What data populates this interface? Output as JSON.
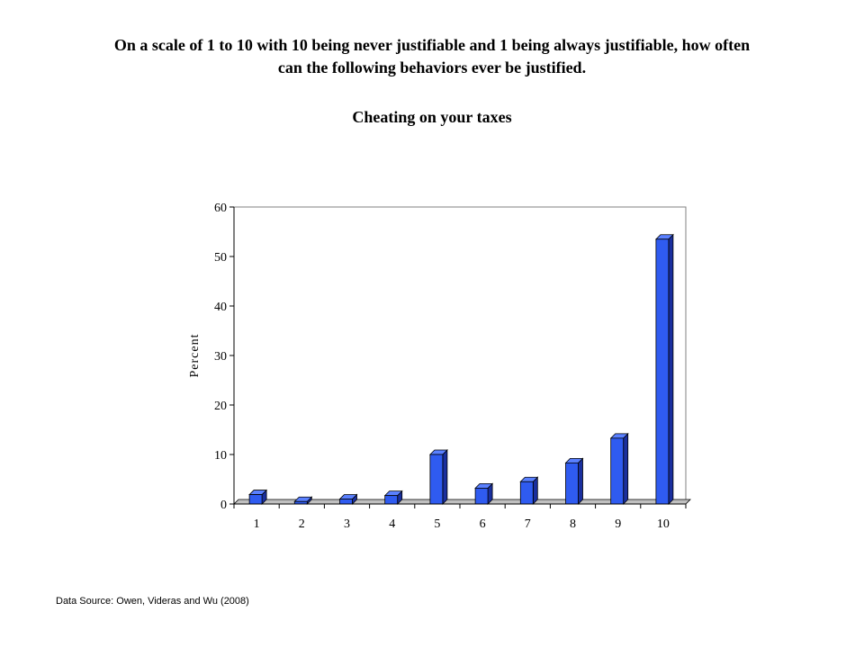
{
  "title_lines": [
    "On a scale of 1 to 10 with 10 being never justifiable and 1 being always justifiable, how often",
    "can the following behaviors ever be justified."
  ],
  "source": "Data Source: Owen, Videras and Wu (2008)",
  "chart_data": {
    "type": "bar",
    "title": "Cheating on your taxes",
    "ylabel": "Percent",
    "xlabel": "",
    "categories": [
      "1",
      "2",
      "3",
      "4",
      "5",
      "6",
      "7",
      "8",
      "9",
      "10"
    ],
    "values": [
      1.9,
      0.5,
      1.0,
      1.7,
      10.0,
      3.2,
      4.5,
      8.3,
      13.3,
      53.5
    ],
    "ylim": [
      0,
      60
    ],
    "yticks": [
      0,
      10,
      20,
      30,
      40,
      50,
      60
    ],
    "grid": false,
    "legend": "none",
    "bar_front_color": "#2F5BF0",
    "bar_side_color": "#1A2F9E",
    "bar_top_color": "#5A80FF",
    "baseline_color": "#C0C0C0"
  }
}
